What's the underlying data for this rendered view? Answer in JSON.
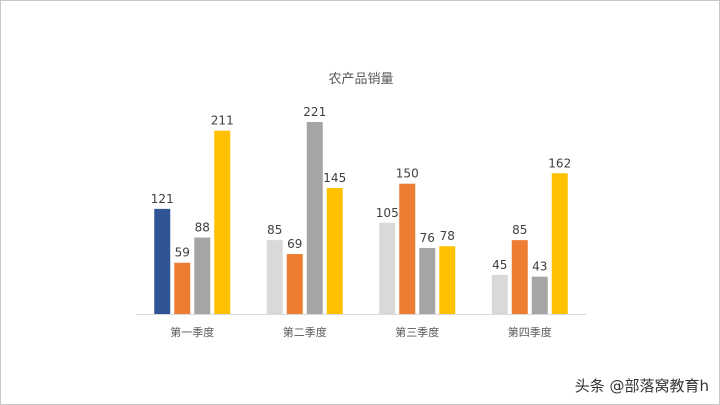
{
  "chart_data": {
    "type": "bar",
    "title": "农产品销量",
    "xlabel": "",
    "ylabel": "",
    "ylim": [
      0,
      221
    ],
    "grid": false,
    "legend": "none",
    "categories": [
      "第一季度",
      "第二季度",
      "第三季度",
      "第四季度"
    ],
    "series": [
      {
        "values": [
          121,
          85,
          105,
          45
        ]
      },
      {
        "values": [
          59,
          69,
          150,
          85
        ]
      },
      {
        "values": [
          88,
          221,
          76,
          43
        ]
      },
      {
        "values": [
          211,
          145,
          78,
          162
        ]
      }
    ],
    "colors": {
      "series": [
        "#d9d9d9",
        "#ed7d31",
        "#a5a5a5",
        "#ffc000"
      ],
      "highlight": "#2f5597",
      "axis": "#d9d9d9"
    },
    "highlighted_points": [
      {
        "series": 0,
        "category": 0
      }
    ]
  },
  "watermark": {
    "text": "头条 @部落窝教育h"
  }
}
